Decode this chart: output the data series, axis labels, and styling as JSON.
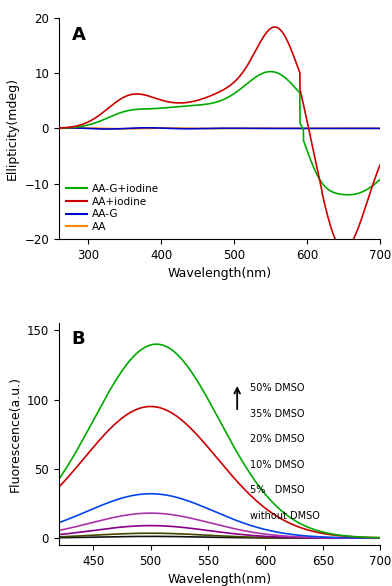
{
  "panel_A": {
    "title": "A",
    "xlabel": "Wavelength(nm)",
    "ylabel": "Ellipticity(mdeg)",
    "xlim": [
      260,
      700
    ],
    "ylim": [
      -20,
      20
    ],
    "xticks": [
      300,
      400,
      500,
      600,
      700
    ],
    "yticks": [
      -20,
      -10,
      0,
      10,
      20
    ],
    "legend": [
      {
        "label": "AA-G+iodine",
        "color": "#00aa00"
      },
      {
        "label": "AA+iodine",
        "color": "#cc0000"
      },
      {
        "label": "AA-G",
        "color": "#0000cc"
      },
      {
        "label": "AA",
        "color": "#ff8800"
      }
    ]
  },
  "panel_B": {
    "title": "B",
    "xlabel": "Wavelength(nm)",
    "ylabel": "Fluorescence(a.u.)",
    "xlim": [
      420,
      700
    ],
    "ylim": [
      -5,
      155
    ],
    "xticks": [
      450,
      500,
      550,
      600,
      650,
      700
    ],
    "yticks": [
      0,
      50,
      100,
      150
    ],
    "curves": [
      {
        "label": "without DMSO",
        "color": "#111111",
        "peak": 500,
        "amp": 1.2,
        "sig": 45
      },
      {
        "label": "5%   DMSO",
        "color": "#444400",
        "peak": 500,
        "amp": 3.5,
        "sig": 48
      },
      {
        "label": "10% DMSO",
        "color": "#880088",
        "peak": 500,
        "amp": 9.0,
        "sig": 50
      },
      {
        "label": "20% DMSO",
        "color": "#aa33aa",
        "peak": 500,
        "amp": 18.0,
        "sig": 52
      },
      {
        "label": "35% DMSO",
        "color": "#0044ee",
        "peak": 500,
        "amp": 32.0,
        "sig": 55
      },
      {
        "label": "50% DMSO",
        "color": "#cc0000",
        "peak": 500,
        "amp": 95.0,
        "sig": 58
      }
    ],
    "green_curve": {
      "color": "#00aa00",
      "peak": 505,
      "amp": 140.0,
      "sig": 55
    },
    "annotation_lines": [
      "50% DMSO",
      "35% DMSO",
      "20% DMSO",
      "10% DMSO",
      "5%   DMSO",
      "without DMSO"
    ]
  }
}
